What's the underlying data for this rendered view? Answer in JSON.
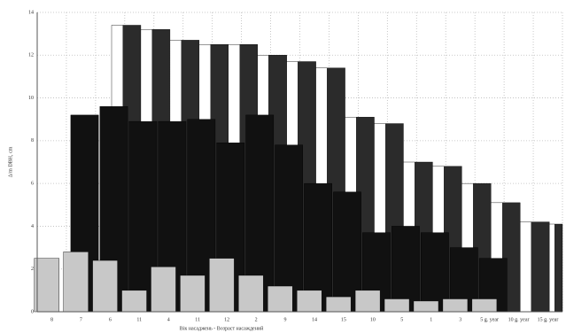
{
  "chart_data": {
    "type": "bar3d",
    "y_label": "Δ/m DBH, cm",
    "x_label": "Вік насаджень - Возраст насаждений",
    "categories": [
      "8",
      "7",
      "6",
      "11",
      "4",
      "11",
      "12",
      "2",
      "9",
      "14",
      "15",
      "10",
      "5",
      "1",
      "3",
      "5 g. year",
      "10 g. year",
      "15 g. year"
    ],
    "series": [
      {
        "color": "#2b2b2b",
        "face": "#ffffff",
        "values": [
          null,
          null,
          13.4,
          13.2,
          12.7,
          12.5,
          12.5,
          12.0,
          11.7,
          11.4,
          9.1,
          8.8,
          7.0,
          6.8,
          6.0,
          5.1,
          4.2,
          4.1
        ]
      },
      {
        "color": "#111111",
        "values": [
          null,
          9.2,
          9.6,
          8.9,
          8.9,
          9.0,
          7.9,
          9.2,
          7.8,
          6.0,
          5.6,
          3.7,
          4.0,
          3.7,
          3.0,
          2.5,
          null,
          null
        ]
      },
      {
        "color": "#c8c8c8",
        "values": [
          2.5,
          2.8,
          2.4,
          1.0,
          2.1,
          1.7,
          2.5,
          1.7,
          1.2,
          1.0,
          0.7,
          1.0,
          0.6,
          0.5,
          0.6,
          0.6,
          null,
          null
        ]
      }
    ],
    "ylim": [
      0,
      14
    ],
    "yticks": [
      0,
      2,
      4,
      6,
      8,
      10,
      12,
      14
    ],
    "grid": true
  }
}
